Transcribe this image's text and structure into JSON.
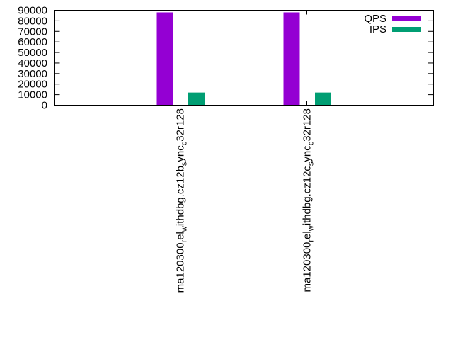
{
  "chart_data": {
    "type": "bar",
    "title": "",
    "xlabel": "",
    "ylabel": "",
    "ylim": [
      0,
      90000
    ],
    "yticks": [
      "0",
      "10000",
      "20000",
      "30000",
      "40000",
      "50000",
      "60000",
      "70000",
      "80000",
      "90000"
    ],
    "categories": [
      {
        "pre": "ma120300",
        "s1": "r",
        "mid": "el",
        "s2": "w",
        "post": "ithdbg.cz12b",
        "s3": "s",
        "tail": "ync",
        "s4": "c",
        "end": "32r128"
      },
      {
        "pre": "ma120300",
        "s1": "r",
        "mid": "el",
        "s2": "w",
        "post": "ithdbg.cz12c",
        "s3": "s",
        "tail": "ync",
        "s4": "c",
        "end": "32r128"
      }
    ],
    "series": [
      {
        "name": "QPS",
        "color": "#9400d3",
        "values": [
          88000,
          88000
        ]
      },
      {
        "name": "IPS",
        "color": "#009e73",
        "values": [
          12000,
          12000
        ]
      }
    ],
    "legend_position": "top-right",
    "grid": false
  }
}
